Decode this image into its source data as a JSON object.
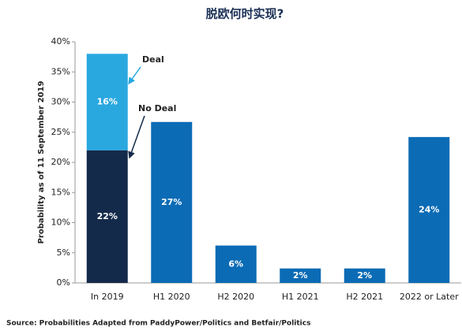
{
  "chart_data": {
    "type": "stacked-bar",
    "title": "脱欧何时实现?",
    "y_label": "Probability as of 11 September 2019",
    "source": "Source: Probabilities Adapted from PaddyPower/Politics and Betfair/Politics",
    "categories": [
      "In 2019",
      "H1 2020",
      "H2 2020",
      "H1 2021",
      "H2 2021",
      "2022 or Later"
    ],
    "series": [
      {
        "name": "No Deal",
        "color": "#142a4a",
        "values": [
          22,
          null,
          null,
          null,
          null,
          null
        ],
        "value_labels": [
          "22%",
          null,
          null,
          null,
          null,
          null
        ]
      },
      {
        "name": "Deal",
        "color": "#29a8e0",
        "values": [
          16,
          null,
          null,
          null,
          null,
          null
        ],
        "value_labels": [
          "16%",
          null,
          null,
          null,
          null,
          null
        ]
      },
      {
        "color": "#0b6bb5",
        "values": [
          null,
          26.7,
          6.2,
          2.4,
          2.4,
          24.2
        ],
        "value_labels": [
          null,
          "27%",
          "6%",
          "2%",
          "2%",
          "24%"
        ]
      }
    ],
    "ylim": [
      0,
      40
    ],
    "yticks": [
      {
        "value": 0,
        "label": "0%"
      },
      {
        "value": 5,
        "label": "5%"
      },
      {
        "value": 10,
        "label": "10%"
      },
      {
        "value": 15,
        "label": "15%"
      },
      {
        "value": 20,
        "label": "20%"
      },
      {
        "value": 25,
        "label": "25%"
      },
      {
        "value": 30,
        "label": "30%"
      },
      {
        "value": 35,
        "label": "35%"
      },
      {
        "value": 40,
        "label": "40%"
      }
    ],
    "grid": false
  }
}
